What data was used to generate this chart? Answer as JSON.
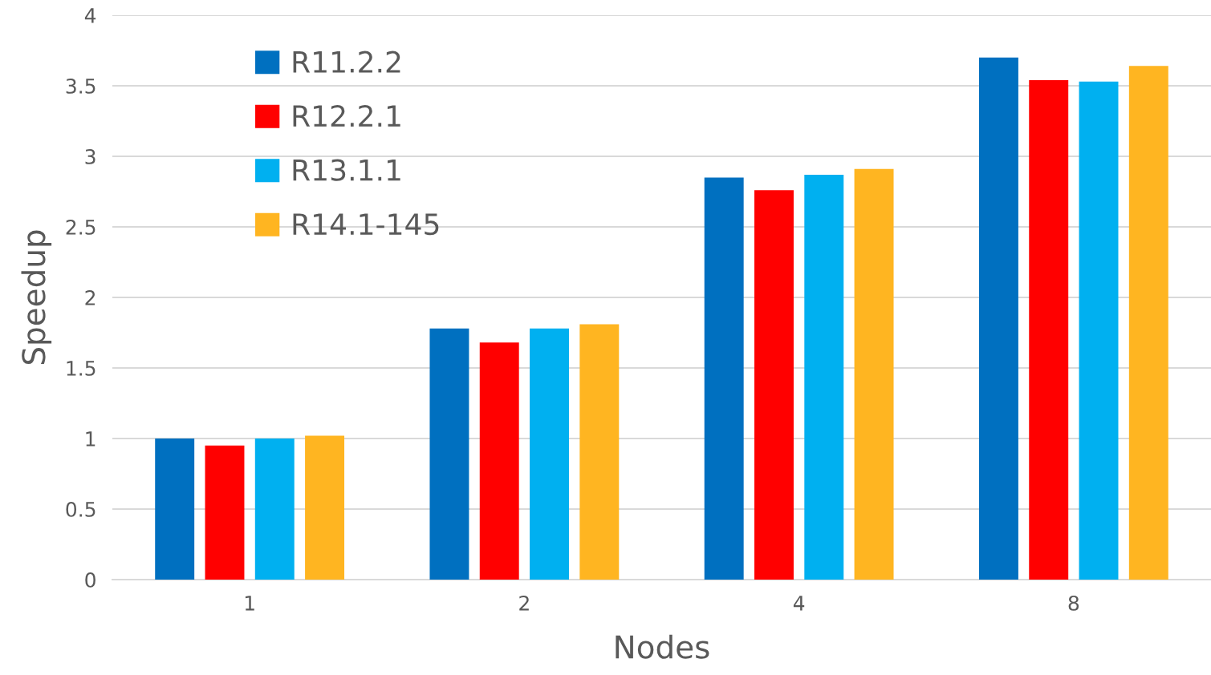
{
  "chart_data": {
    "type": "bar",
    "xlabel": "Nodes",
    "ylabel": "Speedup",
    "categories": [
      "1",
      "2",
      "4",
      "8"
    ],
    "series": [
      {
        "name": "R11.2.2",
        "color": "#0070c0",
        "values": [
          1.0,
          1.78,
          2.85,
          3.7
        ]
      },
      {
        "name": "R12.2.1",
        "color": "#ff0000",
        "values": [
          0.95,
          1.68,
          2.76,
          3.54
        ]
      },
      {
        "name": "R13.1.1",
        "color": "#00b0f0",
        "values": [
          1.0,
          1.78,
          2.87,
          3.53
        ]
      },
      {
        "name": "R14.1-145",
        "color": "#ffb521",
        "values": [
          1.02,
          1.81,
          2.91,
          3.64
        ]
      }
    ],
    "ylim": [
      0,
      4
    ],
    "yticks": [
      0,
      {
        "value": 0.5,
        "label": "0.5"
      },
      1,
      {
        "value": 1.5,
        "label": "1.5"
      },
      2,
      {
        "value": 2.5,
        "label": "2.5"
      },
      3,
      {
        "value": 3.5,
        "label": "3.5"
      },
      4
    ],
    "grid": "y",
    "legend": "top left"
  }
}
